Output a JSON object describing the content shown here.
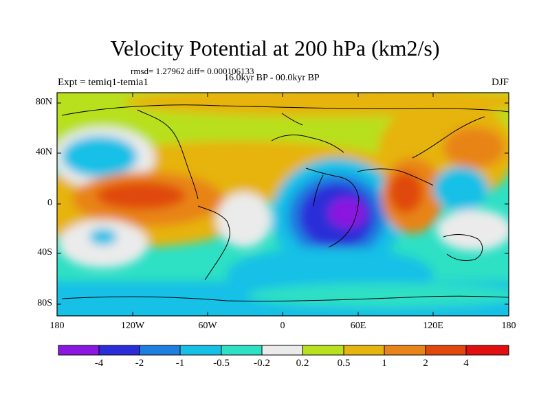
{
  "title": "Velocity Potential at 200 hPa (km2/s)",
  "stats": "rmsd= 1.27962 diff= 0.000106133",
  "period": "16.0kyr BP - 00.0kyr BP",
  "experiment": "Expt = temiq1-temia1",
  "season": "DJF",
  "lat_labels": [
    "80N",
    "40N",
    "0",
    "40S",
    "80S"
  ],
  "lon_labels": [
    "180",
    "120W",
    "60W",
    "0",
    "60E",
    "120E",
    "180"
  ],
  "colorbar": {
    "labels": [
      "-4",
      "-2",
      "-1",
      "-0.5",
      "-0.2",
      "0.2",
      "0.5",
      "1",
      "2",
      "4"
    ],
    "colors": [
      "#8a17e0",
      "#2b2ed8",
      "#1f7fe0",
      "#17c0e6",
      "#2ee0c4",
      "#ebebeb",
      "#b8e01e",
      "#e6b40f",
      "#e88418",
      "#e0480e",
      "#e01010"
    ]
  }
}
